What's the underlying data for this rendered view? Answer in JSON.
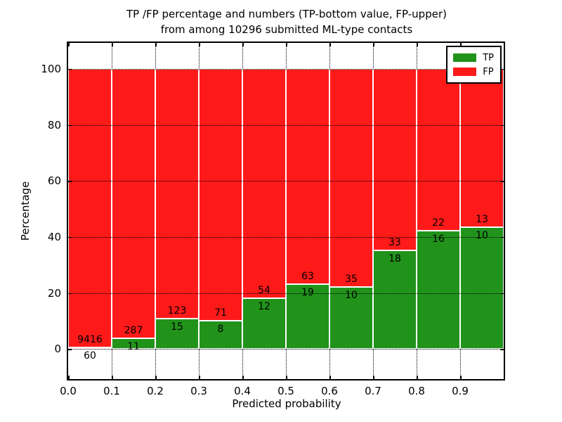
{
  "figure": {
    "title_line1": "TP /FP percentage and numbers (TP-bottom value, FP-upper)",
    "title_line2": "from among 10296 submitted ML-type contacts"
  },
  "chart_data": {
    "type": "bar",
    "stacked": true,
    "normalized": "each bar totals 100%",
    "title": "TP /FP percentage and numbers (TP-bottom value, FP-upper) from among 10296 submitted ML-type contacts",
    "xlabel": "Predicted probability",
    "ylabel": "Percentage",
    "bin_start": [
      0.0,
      0.1,
      0.2,
      0.3,
      0.4,
      0.5,
      0.6,
      0.7,
      0.8,
      0.9
    ],
    "bin_width": 0.1,
    "series": [
      {
        "name": "TP",
        "color": "#21931b",
        "counts": [
          60,
          11,
          15,
          8,
          12,
          19,
          10,
          18,
          16,
          10
        ]
      },
      {
        "name": "FP",
        "color": "#ff1a1a",
        "counts": [
          9416,
          287,
          123,
          71,
          54,
          63,
          35,
          33,
          22,
          13
        ]
      }
    ],
    "tp_percent_per_bin": [
      0.63,
      3.69,
      10.87,
      10.13,
      18.18,
      23.17,
      22.22,
      35.29,
      42.11,
      43.48
    ],
    "bar_label_note": "FP count printed above green/red boundary, TP count below it",
    "xlim": [
      0.0,
      1.0
    ],
    "ylim": [
      -10.75,
      109.25
    ],
    "xticks": [
      "0.0",
      "0.1",
      "0.2",
      "0.3",
      "0.4",
      "0.5",
      "0.6",
      "0.7",
      "0.8",
      "0.9"
    ],
    "yticks": [
      0,
      20,
      40,
      60,
      80,
      100
    ],
    "grid": "dotted, both axes, black",
    "legend": {
      "position": "upper right",
      "entries": [
        {
          "label": "TP",
          "color": "#21931b"
        },
        {
          "label": "FP",
          "color": "#ff1a1a"
        }
      ]
    }
  }
}
